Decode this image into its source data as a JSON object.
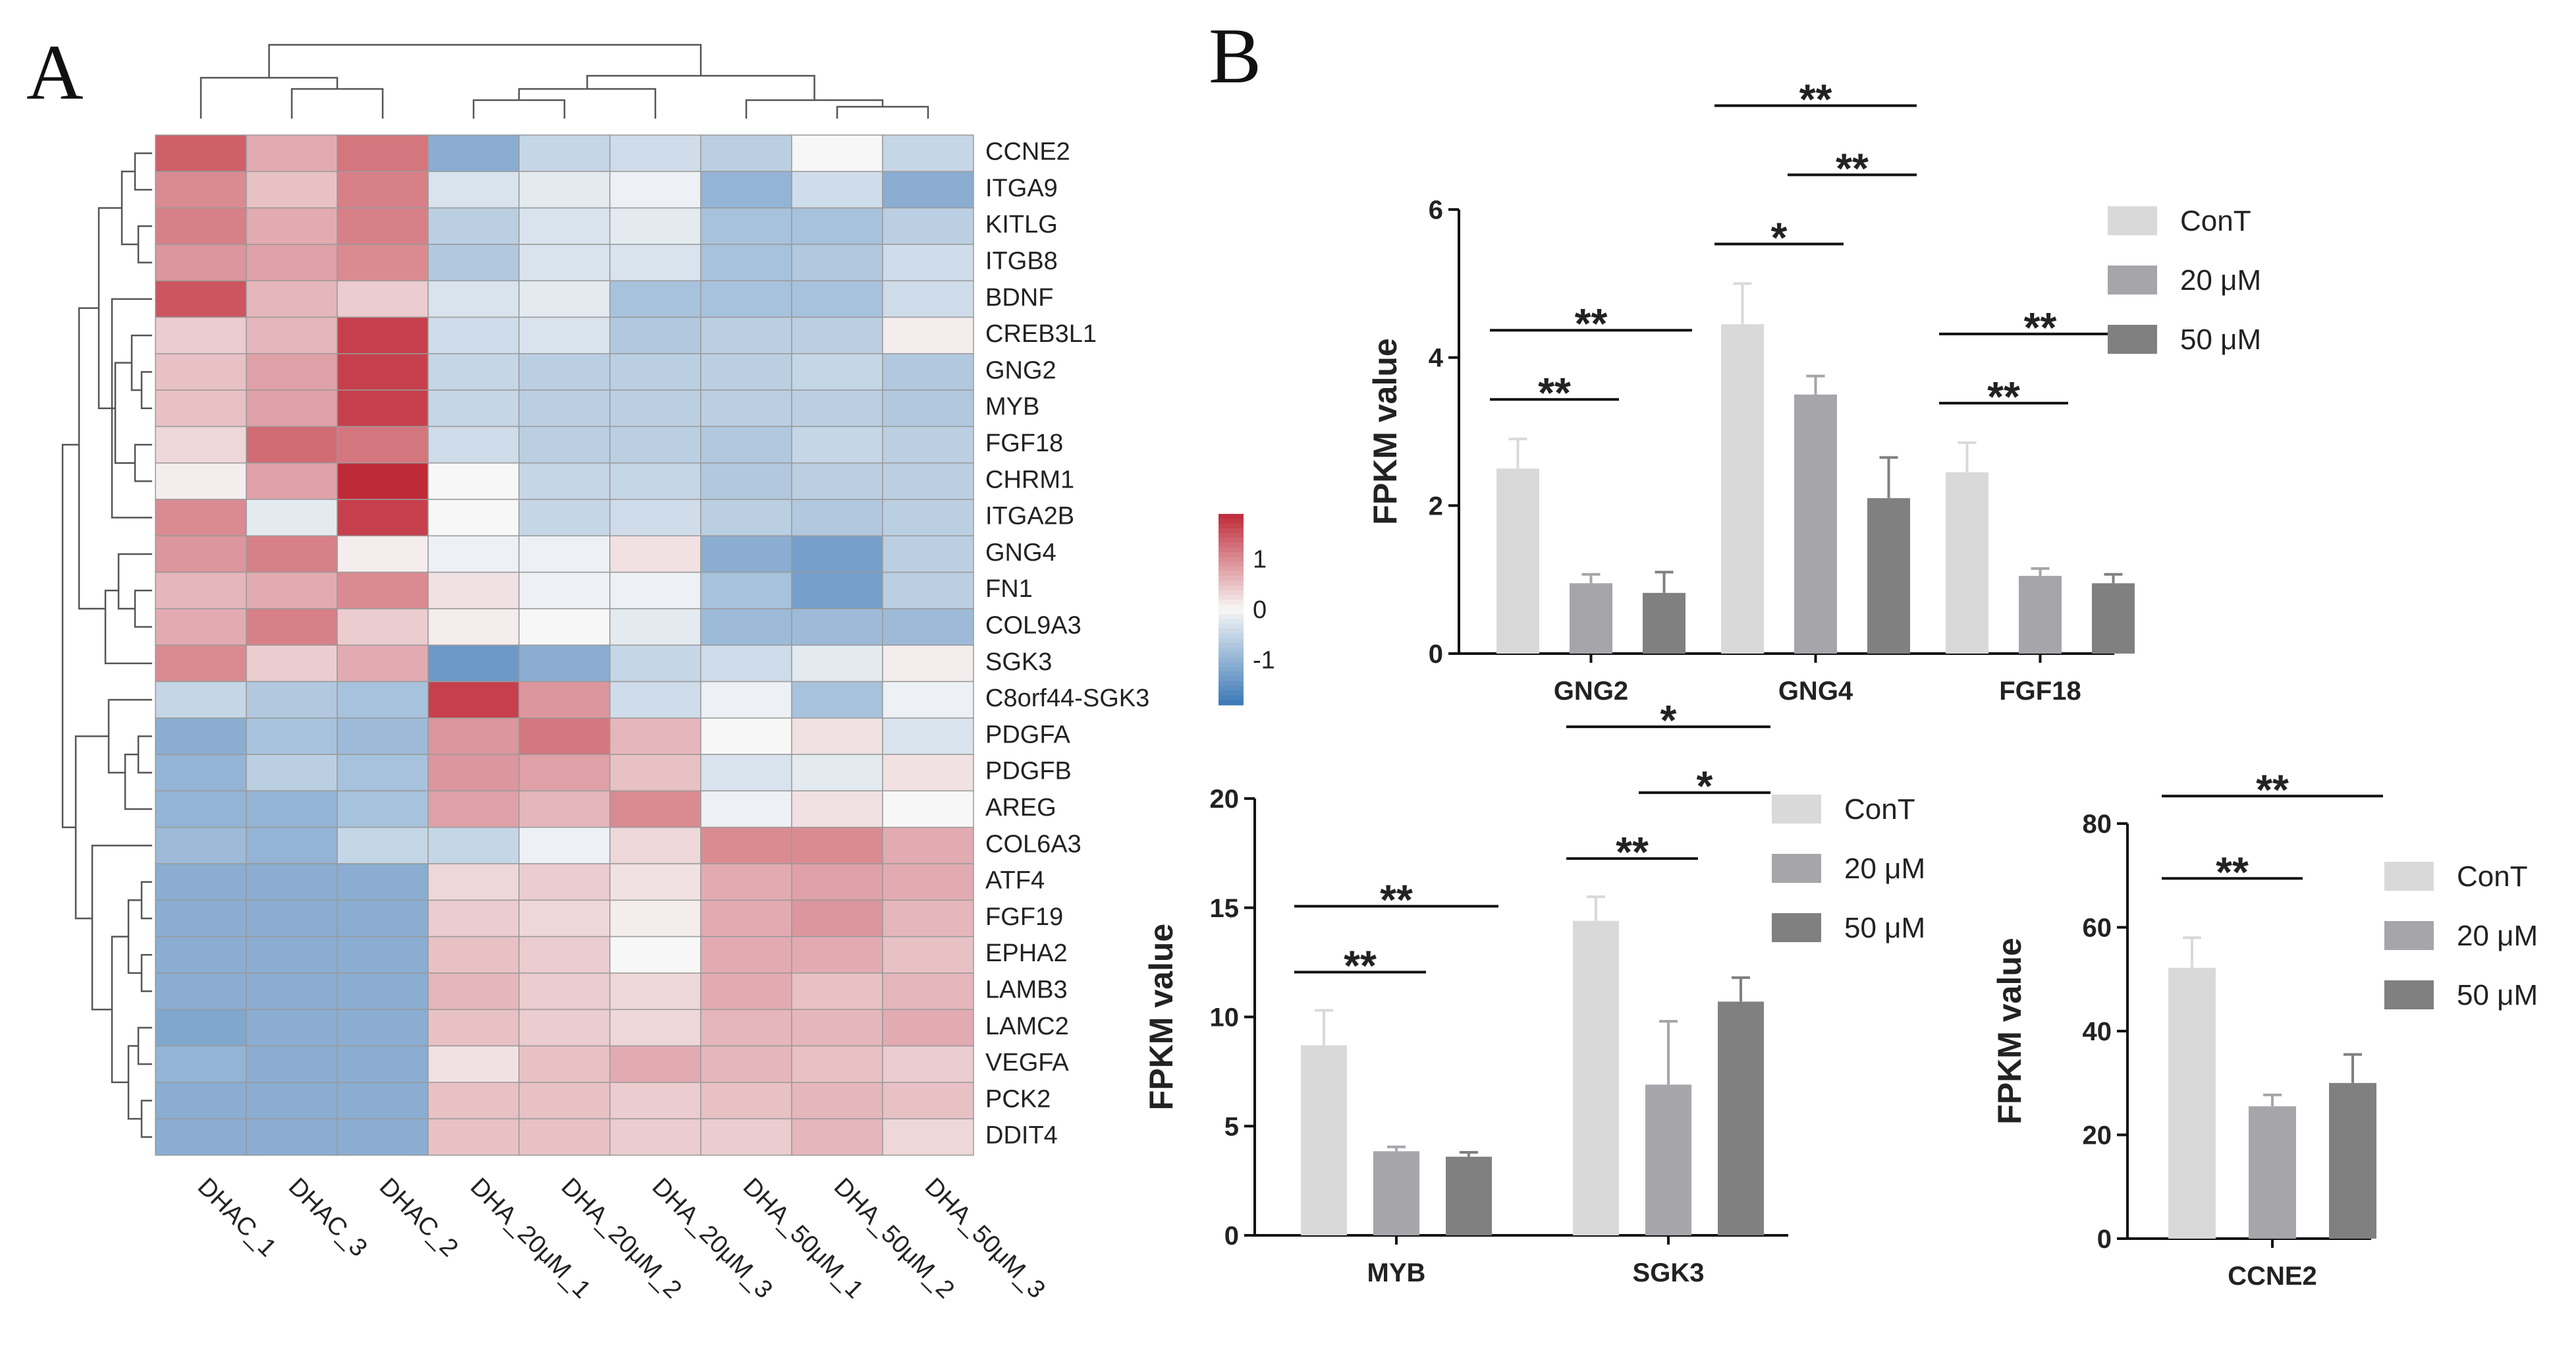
{
  "figure": {
    "panel_a": "A",
    "panel_b": "B"
  },
  "colors": {
    "ConT": "#d9d9d9",
    "20 μM": "#a5a5aa",
    "50 μM": "#808080",
    "low": "#3a78b6",
    "mid": "#f7f7f7",
    "high": "#bf2a38",
    "grid": "#9a9a9a"
  },
  "chart_data": [
    {
      "type": "heatmap",
      "title": "",
      "columns": [
        "DHAC_1",
        "DHAC_3",
        "DHAC_2",
        "DHA_20μM_1",
        "DHA_20μM_2",
        "DHA_20μM_3",
        "DHA_50μM_1",
        "DHA_50μM_2",
        "DHA_50μM_3"
      ],
      "rows": [
        "CCNE2",
        "ITGA9",
        "KITLG",
        "ITGB8",
        "BDNF",
        "CREB3L1",
        "GNG2",
        "MYB",
        "FGF18",
        "CHRM1",
        "ITGA2B",
        "GNG4",
        "FN1",
        "COL9A3",
        "SGK3",
        "C8orf44-SGK3",
        "PDGFA",
        "PDGFB",
        "AREG",
        "COL6A3",
        "ATF4",
        "FGF19",
        "EPHA2",
        "LAMB3",
        "LAMC2",
        "VEGFA",
        "PCK2",
        "DDIT4"
      ],
      "values": [
        [
          1.4,
          0.7,
          1.2,
          -1.1,
          -0.5,
          -0.4,
          -0.6,
          0.0,
          -0.5
        ],
        [
          1.0,
          0.5,
          1.1,
          -0.3,
          -0.2,
          -0.1,
          -1.0,
          -0.4,
          -1.1
        ],
        [
          1.1,
          0.7,
          1.1,
          -0.6,
          -0.3,
          -0.2,
          -0.8,
          -0.8,
          -0.6
        ],
        [
          0.9,
          0.8,
          1.0,
          -0.7,
          -0.3,
          -0.3,
          -0.8,
          -0.7,
          -0.4
        ],
        [
          1.5,
          0.6,
          0.4,
          -0.3,
          -0.2,
          -0.8,
          -0.8,
          -0.8,
          -0.4
        ],
        [
          0.4,
          0.6,
          1.7,
          -0.4,
          -0.3,
          -0.7,
          -0.6,
          -0.6,
          0.1
        ],
        [
          0.5,
          0.8,
          1.7,
          -0.5,
          -0.6,
          -0.6,
          -0.6,
          -0.5,
          -0.7
        ],
        [
          0.5,
          0.8,
          1.7,
          -0.5,
          -0.6,
          -0.6,
          -0.6,
          -0.6,
          -0.7
        ],
        [
          0.3,
          1.3,
          1.2,
          -0.4,
          -0.6,
          -0.6,
          -0.7,
          -0.5,
          -0.6
        ],
        [
          0.1,
          0.8,
          1.9,
          0.0,
          -0.5,
          -0.5,
          -0.7,
          -0.6,
          -0.6
        ],
        [
          1.0,
          -0.2,
          1.7,
          0.0,
          -0.5,
          -0.4,
          -0.6,
          -0.7,
          -0.6
        ],
        [
          0.9,
          1.1,
          0.1,
          -0.1,
          -0.1,
          0.2,
          -1.1,
          -1.3,
          -0.6
        ],
        [
          0.6,
          0.7,
          1.0,
          0.2,
          -0.1,
          -0.1,
          -0.8,
          -1.3,
          -0.6
        ],
        [
          0.7,
          1.1,
          0.4,
          0.1,
          0.0,
          -0.2,
          -0.9,
          -0.9,
          -0.9
        ],
        [
          1.0,
          0.4,
          0.7,
          -1.4,
          -1.1,
          -0.5,
          -0.4,
          -0.2,
          0.1
        ],
        [
          -0.5,
          -0.7,
          -0.8,
          1.7,
          0.9,
          -0.4,
          -0.1,
          -0.8,
          -0.1
        ],
        [
          -1.1,
          -0.8,
          -0.9,
          0.9,
          1.2,
          0.6,
          0.0,
          0.2,
          -0.3
        ],
        [
          -1.0,
          -0.6,
          -0.8,
          0.9,
          0.8,
          0.5,
          -0.3,
          -0.2,
          0.2
        ],
        [
          -1.0,
          -1.0,
          -0.8,
          0.8,
          0.6,
          1.0,
          -0.1,
          0.2,
          0.0
        ],
        [
          -0.9,
          -1.0,
          -0.5,
          -0.5,
          -0.1,
          0.3,
          1.0,
          1.0,
          0.7
        ],
        [
          -1.1,
          -1.1,
          -1.1,
          0.3,
          0.4,
          0.2,
          0.7,
          0.8,
          0.7
        ],
        [
          -1.1,
          -1.1,
          -1.1,
          0.4,
          0.3,
          0.1,
          0.7,
          0.9,
          0.6
        ],
        [
          -1.1,
          -1.1,
          -1.1,
          0.5,
          0.4,
          0.0,
          0.7,
          0.7,
          0.5
        ],
        [
          -1.1,
          -1.1,
          -1.1,
          0.6,
          0.4,
          0.3,
          0.7,
          0.5,
          0.6
        ],
        [
          -1.2,
          -1.1,
          -1.1,
          0.5,
          0.4,
          0.3,
          0.6,
          0.6,
          0.7
        ],
        [
          -1.0,
          -1.1,
          -1.1,
          0.2,
          0.5,
          0.7,
          0.6,
          0.5,
          0.4
        ],
        [
          -1.1,
          -1.1,
          -1.1,
          0.5,
          0.5,
          0.4,
          0.5,
          0.6,
          0.5
        ],
        [
          -1.1,
          -1.1,
          -1.1,
          0.5,
          0.5,
          0.4,
          0.4,
          0.6,
          0.3
        ]
      ],
      "colorbar": {
        "range": [
          -1.9,
          1.9
        ],
        "ticks": [
          1,
          0,
          -1
        ],
        "tick_labels": [
          "1",
          "0",
          "-1"
        ]
      }
    },
    {
      "type": "bar",
      "categories": [
        "GNG2",
        "GNG4",
        "FGF18"
      ],
      "series": [
        {
          "name": "ConT",
          "values": [
            2.5,
            4.45,
            2.45
          ],
          "errors": [
            0.4,
            0.55,
            0.4
          ]
        },
        {
          "name": "20 μM",
          "values": [
            0.95,
            3.5,
            1.05
          ],
          "errors": [
            0.12,
            0.25,
            0.1
          ]
        },
        {
          "name": "50 μM",
          "values": [
            0.82,
            2.1,
            0.95
          ],
          "errors": [
            0.28,
            0.55,
            0.12
          ]
        }
      ],
      "ylabel": "FPKM value",
      "xlabel": "",
      "ylim": [
        0,
        6
      ],
      "yticks": [
        0,
        2,
        4,
        6
      ],
      "legend": [
        "ConT",
        "20 μM",
        "50 μM"
      ],
      "legend_position": "right",
      "significance": [
        {
          "group": 0,
          "from": 0,
          "to": 1,
          "label": "**"
        },
        {
          "group": 0,
          "from": 0,
          "to": 2,
          "label": "**"
        },
        {
          "group": 1,
          "from": 0,
          "to": 1,
          "label": "*"
        },
        {
          "group": 1,
          "from": 0,
          "to": 2,
          "label": "**"
        },
        {
          "group": 1,
          "from": 1,
          "to": 2,
          "label": "**"
        },
        {
          "group": 2,
          "from": 0,
          "to": 1,
          "label": "**"
        },
        {
          "group": 2,
          "from": 0,
          "to": 2,
          "label": "**"
        }
      ]
    },
    {
      "type": "bar",
      "categories": [
        "MYB",
        "SGK3"
      ],
      "series": [
        {
          "name": "ConT",
          "values": [
            8.7,
            14.4
          ],
          "errors": [
            1.6,
            1.1
          ]
        },
        {
          "name": "20 μM",
          "values": [
            3.85,
            6.9
          ],
          "errors": [
            0.2,
            2.9
          ]
        },
        {
          "name": "50 μM",
          "values": [
            3.6,
            10.7
          ],
          "errors": [
            0.2,
            1.1
          ]
        }
      ],
      "ylabel": "FPKM value",
      "xlabel": "",
      "ylim": [
        0,
        20
      ],
      "yticks": [
        0,
        5,
        10,
        15,
        20
      ],
      "legend": [
        "ConT",
        "20 μM",
        "50 μM"
      ],
      "legend_position": "right",
      "significance": [
        {
          "group": 0,
          "from": 0,
          "to": 1,
          "label": "**"
        },
        {
          "group": 0,
          "from": 0,
          "to": 2,
          "label": "**"
        },
        {
          "group": 1,
          "from": 0,
          "to": 1,
          "label": "**"
        },
        {
          "group": 1,
          "from": 0,
          "to": 2,
          "label": "*"
        },
        {
          "group": 1,
          "from": 1,
          "to": 2,
          "label": "*"
        }
      ]
    },
    {
      "type": "bar",
      "categories": [
        "CCNE2"
      ],
      "series": [
        {
          "name": "ConT",
          "values": [
            52.2
          ],
          "errors": [
            5.8
          ]
        },
        {
          "name": "20 μM",
          "values": [
            25.5
          ],
          "errors": [
            2.2
          ]
        },
        {
          "name": "50 μM",
          "values": [
            30
          ],
          "errors": [
            5.5
          ]
        }
      ],
      "ylabel": "FPKM value",
      "xlabel": "",
      "ylim": [
        0,
        80
      ],
      "yticks": [
        0,
        20,
        40,
        60,
        80
      ],
      "legend": [
        "ConT",
        "20 μM",
        "50 μM"
      ],
      "legend_position": "right",
      "significance": [
        {
          "group": 0,
          "from": 0,
          "to": 1,
          "label": "**"
        },
        {
          "group": 0,
          "from": 0,
          "to": 2,
          "label": "**"
        }
      ]
    }
  ]
}
